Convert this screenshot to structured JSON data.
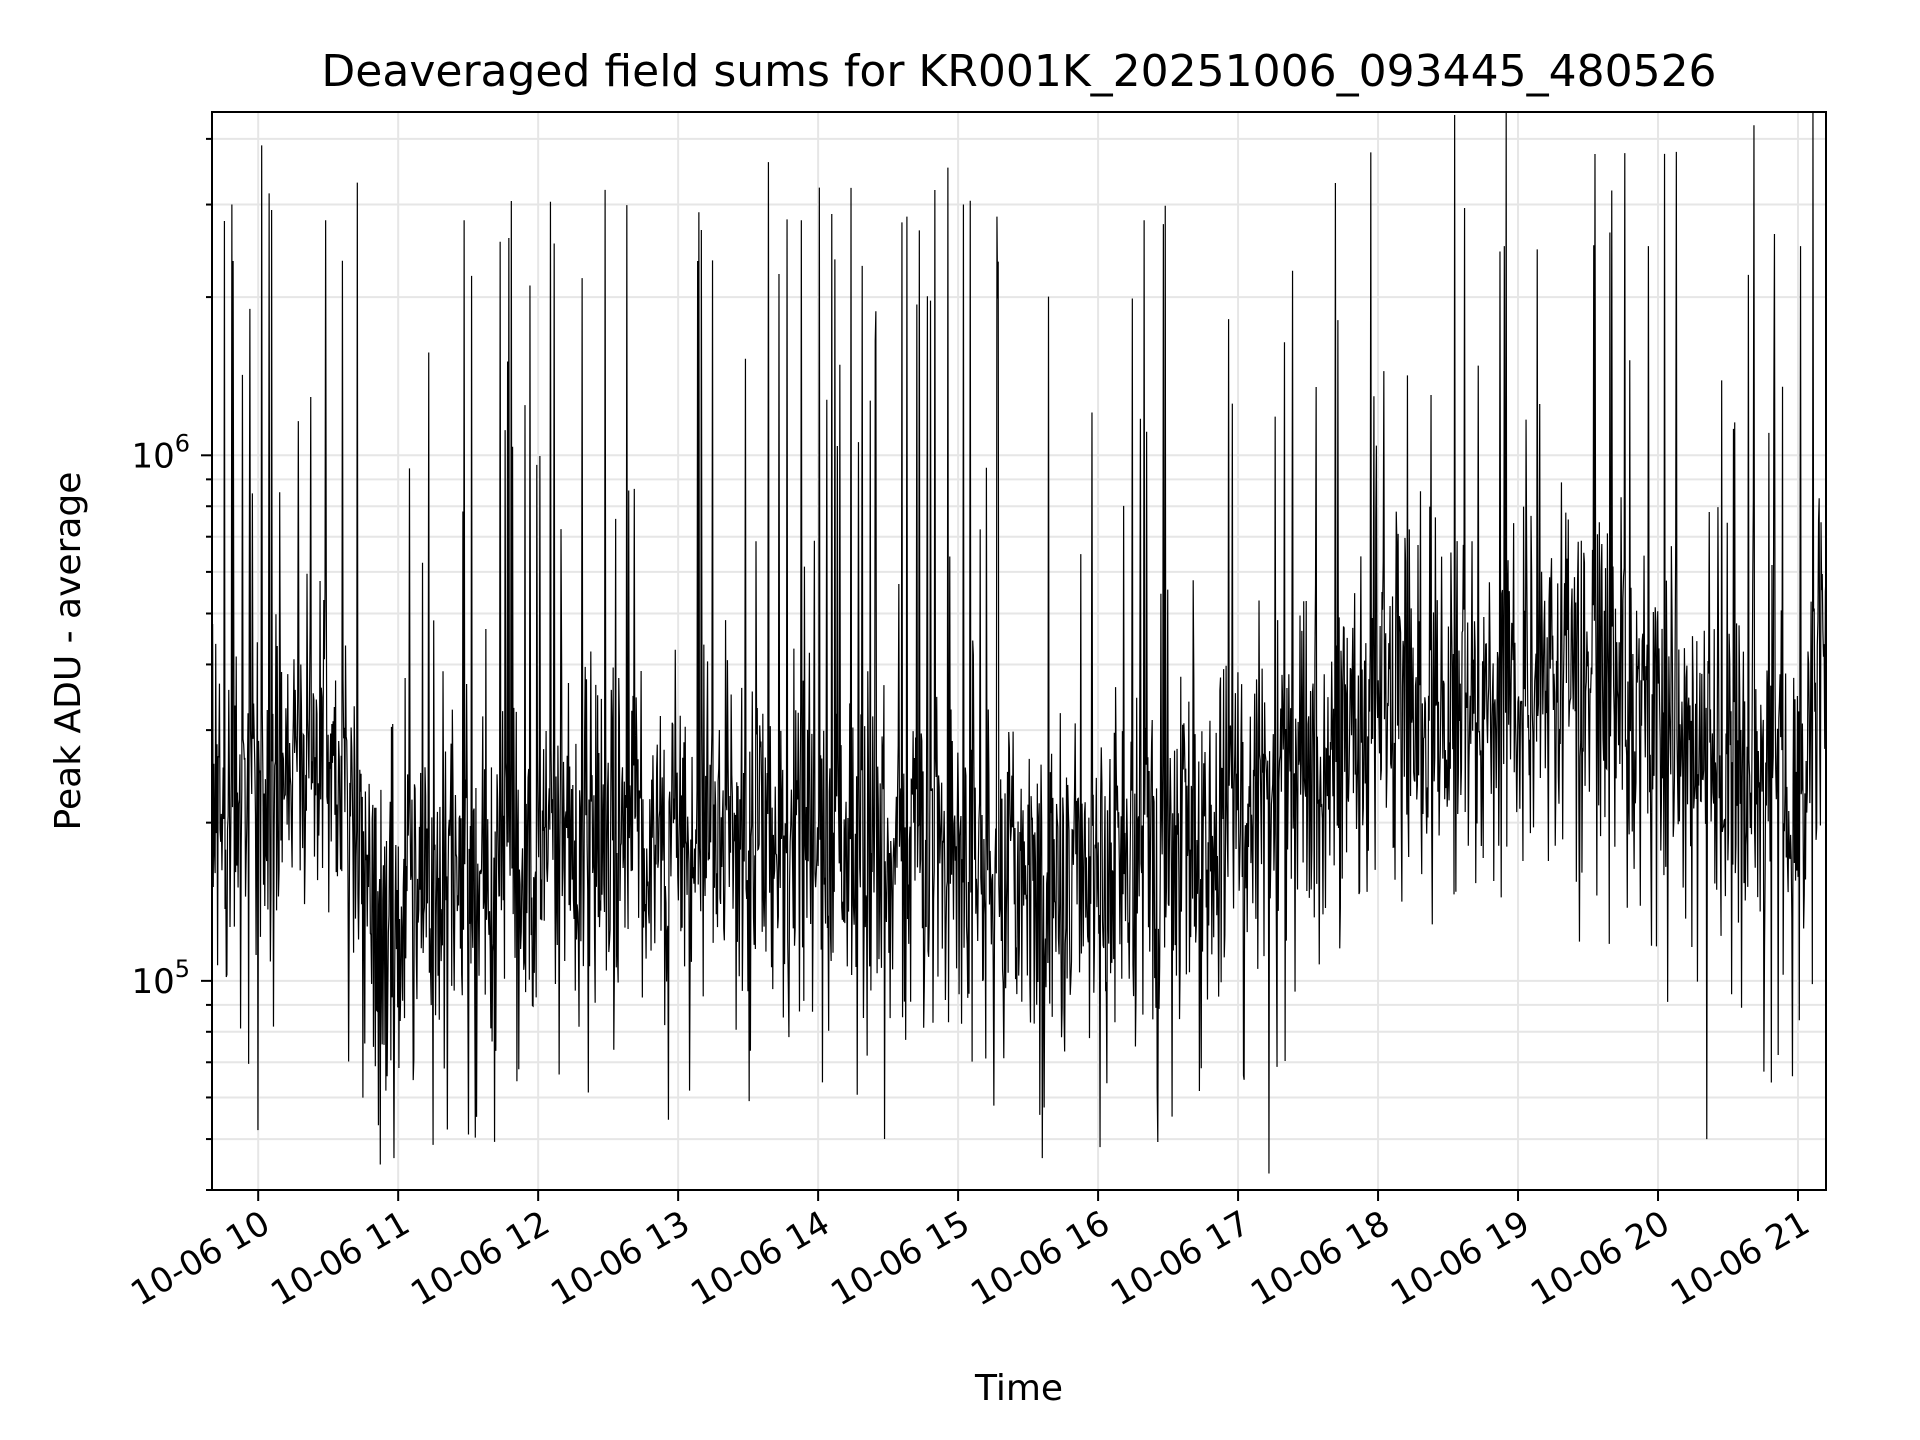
{
  "chart_data": {
    "type": "line",
    "title": "Deaveraged field sums for KR001K_20251006_093445_480526",
    "xlabel": "Time",
    "ylabel": "Peak ADU - average",
    "yscale": "log",
    "ylim": [
      40000,
      4500000
    ],
    "xlim_hours": [
      9.67,
      21.2
    ],
    "grid": true,
    "legend": "none",
    "line_color": "#000000",
    "x_ticks": [
      {
        "hour": 10,
        "label": "10-06 10"
      },
      {
        "hour": 11,
        "label": "10-06 11"
      },
      {
        "hour": 12,
        "label": "10-06 12"
      },
      {
        "hour": 13,
        "label": "10-06 13"
      },
      {
        "hour": 14,
        "label": "10-06 14"
      },
      {
        "hour": 15,
        "label": "10-06 15"
      },
      {
        "hour": 16,
        "label": "10-06 16"
      },
      {
        "hour": 17,
        "label": "10-06 17"
      },
      {
        "hour": 18,
        "label": "10-06 18"
      },
      {
        "hour": 19,
        "label": "10-06 19"
      },
      {
        "hour": 20,
        "label": "10-06 20"
      },
      {
        "hour": 21,
        "label": "10-06 21"
      }
    ],
    "y_ticks": [
      {
        "value": 100000,
        "base": "10",
        "exp": "5"
      },
      {
        "value": 1000000,
        "base": "10",
        "exp": "6"
      }
    ],
    "series": [
      {
        "name": "deaveraged field sum",
        "baseline_envelope_hours": [
          9.67,
          10.0,
          10.5,
          10.75,
          11.0,
          11.5,
          12.0,
          12.5,
          13.0,
          13.5,
          14.0,
          14.5,
          15.0,
          15.5,
          16.0,
          16.5,
          17.0,
          17.5,
          17.8,
          18.0,
          18.5,
          19.0,
          19.5,
          20.0,
          20.5,
          21.0,
          21.2
        ],
        "baseline_envelope_values": [
          220000,
          230000,
          300000,
          160000,
          140000,
          150000,
          175000,
          200000,
          180000,
          190000,
          175000,
          170000,
          185000,
          160000,
          150000,
          160000,
          210000,
          260000,
          280000,
          320000,
          330000,
          370000,
          380000,
          320000,
          240000,
          210000,
          500000
        ],
        "peak_spikes": [
          {
            "hour": 9.81,
            "value": 3000000
          },
          {
            "hour": 10.08,
            "value": 3150000
          },
          {
            "hour": 10.48,
            "value": 2800000
          },
          {
            "hour": 11.47,
            "value": 2800000
          },
          {
            "hour": 12.48,
            "value": 3200000
          },
          {
            "hour": 13.15,
            "value": 2900000
          },
          {
            "hour": 13.88,
            "value": 2800000
          },
          {
            "hour": 15.04,
            "value": 3000000
          },
          {
            "hour": 16.33,
            "value": 2800000
          },
          {
            "hour": 18.9,
            "value": 2500000
          },
          {
            "hour": 19.93,
            "value": 2500000
          },
          {
            "hour": 21.02,
            "value": 2500000
          }
        ],
        "low_dips": [
          {
            "hour": 10.0,
            "value": 52000
          },
          {
            "hour": 11.5,
            "value": 51000
          },
          {
            "hour": 15.6,
            "value": 46000
          },
          {
            "hour": 17.22,
            "value": 43000
          },
          {
            "hour": 20.35,
            "value": 50000
          }
        ]
      }
    ]
  }
}
